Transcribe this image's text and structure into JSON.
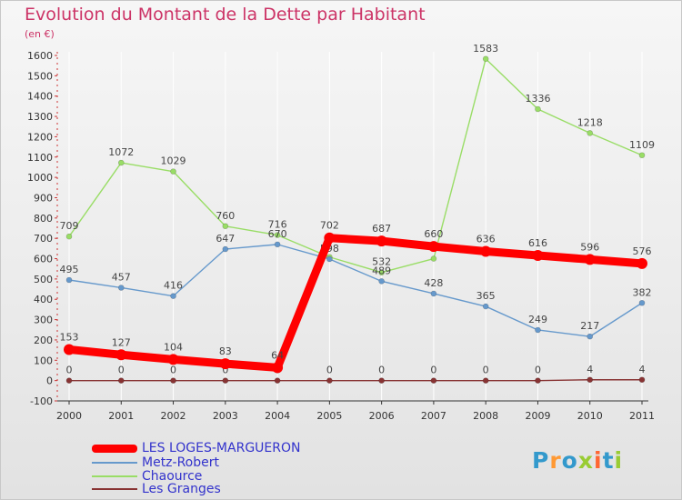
{
  "title": "Evolution du Montant de la Dette par Habitant",
  "unit": "(en €)",
  "logo": {
    "text": "Proxiti",
    "colors": [
      "#3399cc",
      "#ff9933",
      "#3399cc",
      "#99cc33",
      "#ff6633",
      "#3399cc",
      "#99cc33"
    ]
  },
  "chart_data": {
    "type": "line",
    "x": [
      "2000",
      "2001",
      "2002",
      "2003",
      "2004",
      "2005",
      "2006",
      "2007",
      "2008",
      "2009",
      "2010",
      "2011"
    ],
    "ylim": [
      -100,
      1600
    ],
    "yticks": [
      -100,
      0,
      100,
      200,
      300,
      400,
      500,
      600,
      700,
      800,
      900,
      1000,
      1100,
      1200,
      1300,
      1400,
      1500,
      1600
    ],
    "grid": "vertical",
    "legend": "bottom-left",
    "series": [
      {
        "name": "Chaource",
        "color": "#99dd66",
        "values": [
          709,
          1072,
          1029,
          760,
          716,
          608,
          532,
          600,
          1583,
          1336,
          1218,
          1109
        ],
        "labels": [
          "709",
          "1072",
          "1029",
          "760",
          "716",
          "",
          "532",
          "",
          "1583",
          "1336",
          "1218",
          "1109"
        ]
      },
      {
        "name": "Metz-Robert",
        "color": "#6699cc",
        "values": [
          495,
          457,
          416,
          647,
          670,
          598,
          489,
          428,
          365,
          249,
          217,
          382
        ],
        "labels": [
          "495",
          "457",
          "416",
          "647",
          "670",
          "598",
          "489",
          "428",
          "365",
          "249",
          "217",
          "382"
        ]
      },
      {
        "name": "Les Granges",
        "color": "#883333",
        "values": [
          0,
          0,
          0,
          0,
          0,
          0,
          0,
          0,
          0,
          0,
          4,
          4
        ],
        "labels": [
          "0",
          "0",
          "0",
          "0",
          "0",
          "0",
          "0",
          "0",
          "0",
          "0",
          "4",
          "4"
        ]
      },
      {
        "name": "LES LOGES-MARGUERON",
        "color": "#ff0000",
        "values": [
          153,
          127,
          104,
          83,
          64,
          702,
          687,
          660,
          636,
          616,
          596,
          576
        ],
        "labels": [
          "153",
          "127",
          "104",
          "83",
          "64",
          "702",
          "687",
          "660",
          "636",
          "616",
          "596",
          "576"
        ]
      }
    ]
  },
  "legend_entries": [
    {
      "name": "LES LOGES-MARGUERON",
      "color": "#ff0000",
      "weight": "thick"
    },
    {
      "name": "Metz-Robert",
      "color": "#6699cc",
      "weight": "thin"
    },
    {
      "name": "Chaource",
      "color": "#99dd66",
      "weight": "thin"
    },
    {
      "name": "Les Granges",
      "color": "#883333",
      "weight": "thin"
    }
  ]
}
